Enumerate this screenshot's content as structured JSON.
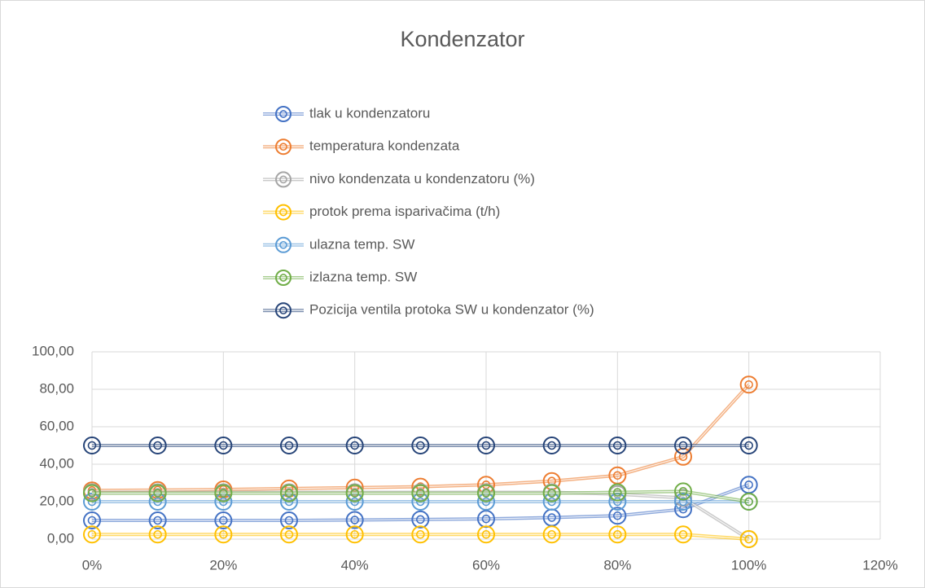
{
  "chart_data": {
    "type": "line",
    "title": "Kondenzator",
    "x": [
      0,
      0.1,
      0.2,
      0.3,
      0.4,
      0.5,
      0.6,
      0.7,
      0.8,
      0.9,
      1.0
    ],
    "series": [
      {
        "name": "tlak u kondenzatoru",
        "color": "#4472c4",
        "values": [
          10,
          10,
          10,
          10,
          10.2,
          10.5,
          10.8,
          11.5,
          12.5,
          16,
          29
        ]
      },
      {
        "name": "temperatura kondenzata",
        "color": "#ed7d31",
        "values": [
          26,
          26.2,
          26.5,
          27,
          27.5,
          28,
          29,
          31,
          34,
          44,
          82.5
        ]
      },
      {
        "name": "nivo kondenzata u kondenzatoru (%)",
        "color": "#a5a5a5",
        "values": [
          25,
          25,
          25,
          25,
          25,
          25,
          25,
          25,
          24,
          22,
          0
        ]
      },
      {
        "name": "protok prema isparivačima (t/h)",
        "color": "#ffc000",
        "values": [
          2.5,
          2.5,
          2.5,
          2.5,
          2.5,
          2.5,
          2.5,
          2.5,
          2.5,
          2.5,
          0
        ]
      },
      {
        "name": "ulazna temp. SW",
        "color": "#5b9bd5",
        "values": [
          20,
          20,
          20,
          20,
          20,
          20,
          20,
          20,
          20,
          20,
          20
        ]
      },
      {
        "name": "izlazna temp. SW",
        "color": "#70ad47",
        "values": [
          24.5,
          24.5,
          24.5,
          24.5,
          24.5,
          24.5,
          24.5,
          24.5,
          25,
          25.5,
          20
        ]
      },
      {
        "name": "Pozicija ventila protoka SW u kondenzator (%)",
        "color": "#264478",
        "values": [
          50,
          50,
          50,
          50,
          50,
          50,
          50,
          50,
          50,
          50,
          50
        ]
      }
    ],
    "xlim": [
      0,
      1.2
    ],
    "xticks": [
      {
        "value": 0,
        "label": "0%"
      },
      {
        "value": 0.2,
        "label": "20%"
      },
      {
        "value": 0.4,
        "label": "40%"
      },
      {
        "value": 0.6,
        "label": "60%"
      },
      {
        "value": 0.8,
        "label": "80%"
      },
      {
        "value": 1.0,
        "label": "100%"
      },
      {
        "value": 1.2,
        "label": "120%"
      }
    ],
    "ylim": [
      0,
      100
    ],
    "yticks": [
      {
        "value": 0,
        "label": "0,00"
      },
      {
        "value": 20,
        "label": "20,00"
      },
      {
        "value": 40,
        "label": "40,00"
      },
      {
        "value": 60,
        "label": "60,00"
      },
      {
        "value": 80,
        "label": "80,00"
      },
      {
        "value": 100,
        "label": "100,00"
      }
    ],
    "grid": true,
    "legend": "top"
  }
}
